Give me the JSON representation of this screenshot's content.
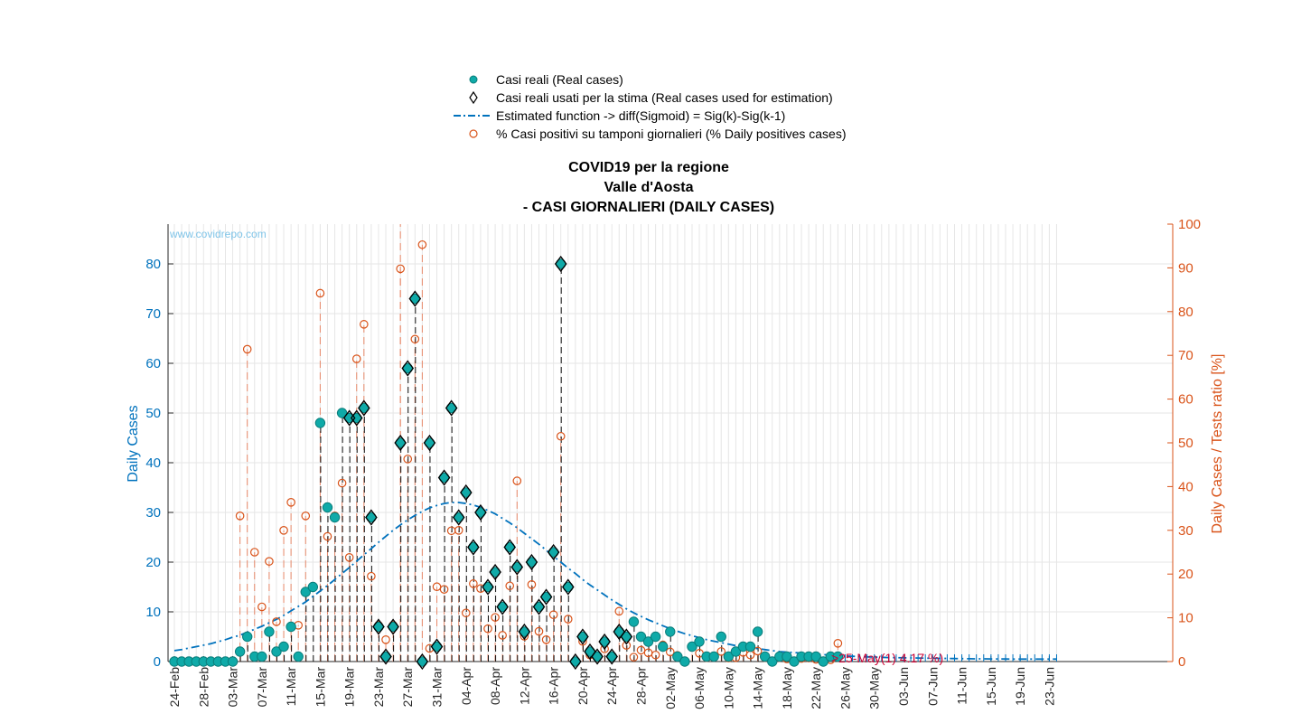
{
  "legend": [
    {
      "label": "Casi reali (Real cases)",
      "icon": "filled-circle-marker"
    },
    {
      "label": "Casi reali usati per la stima (Real cases used for estimation)",
      "icon": "diamond-marker"
    },
    {
      "label": "Estimated function -> diff(Sigmoid) = Sig(k)-Sig(k-1)",
      "icon": "dash-dot-line"
    },
    {
      "label": "% Casi positivi su tamponi giornalieri (% Daily positives cases)",
      "icon": "open-circle-marker"
    }
  ],
  "title": {
    "line1": "COVID19 per la regione",
    "line2": "Valle d'Aosta",
    "line3": "- CASI GIORNALIERI (DAILY CASES)"
  },
  "watermark": "www.covidrepo.com",
  "annotation": ">25-May(1) 4.17 %)",
  "colors": {
    "real_cases": "#0faaa8",
    "estimate_line": "#0072bd",
    "percent": "#d95319",
    "left_axis": "#0072bd",
    "right_axis": "#d95319",
    "annotation": "#cc0033"
  },
  "chart_data": {
    "type": "scatter",
    "title": "COVID19 per la regione Valle d'Aosta - CASI GIORNALIERI (DAILY CASES)",
    "xlabel": "",
    "ylabel": "Daily Cases",
    "y2label": "Daily Cases / Tests ratio [%]",
    "ylim": [
      0,
      88
    ],
    "y2lim": [
      0,
      100
    ],
    "yticks": [
      0,
      10,
      20,
      30,
      40,
      50,
      60,
      70,
      80
    ],
    "y2ticks": [
      0,
      10,
      20,
      30,
      40,
      50,
      60,
      70,
      80,
      90,
      100
    ],
    "x_start": "24-Feb",
    "x_days": 122,
    "xtick_labels": [
      "24-Feb",
      "28-Feb",
      "03-Mar",
      "07-Mar",
      "11-Mar",
      "15-Mar",
      "19-Mar",
      "23-Mar",
      "27-Mar",
      "31-Mar",
      "04-Apr",
      "08-Apr",
      "12-Apr",
      "16-Apr",
      "20-Apr",
      "24-Apr",
      "28-Apr",
      "02-May",
      "06-May",
      "10-May",
      "14-May",
      "18-May",
      "22-May",
      "26-May",
      "30-May",
      "03-Jun",
      "07-Jun",
      "11-Jun",
      "15-Jun",
      "19-Jun",
      "23-Jun"
    ],
    "grid": true,
    "legend_position": "top",
    "series": [
      {
        "name": "Casi reali (Real cases)",
        "x": [
          "24-Feb",
          "25-Feb",
          "26-Feb",
          "27-Feb",
          "28-Feb",
          "29-Feb",
          "01-Mar",
          "02-Mar",
          "03-Mar",
          "04-Mar",
          "05-Mar",
          "06-Mar",
          "07-Mar",
          "08-Mar",
          "09-Mar",
          "10-Mar",
          "11-Mar",
          "12-Mar",
          "13-Mar",
          "14-Mar",
          "15-Mar",
          "16-Mar",
          "17-Mar",
          "18-Mar",
          "19-Mar",
          "20-Mar",
          "21-Mar",
          "22-Mar",
          "23-Mar",
          "24-Mar",
          "25-Mar",
          "26-Mar",
          "27-Mar",
          "28-Mar",
          "29-Mar",
          "30-Mar",
          "31-Mar",
          "01-Apr",
          "02-Apr",
          "03-Apr",
          "04-Apr",
          "05-Apr",
          "06-Apr",
          "07-Apr",
          "08-Apr",
          "09-Apr",
          "10-Apr",
          "11-Apr",
          "12-Apr",
          "13-Apr",
          "14-Apr",
          "15-Apr",
          "16-Apr",
          "17-Apr",
          "18-Apr",
          "19-Apr",
          "20-Apr",
          "21-Apr",
          "22-Apr",
          "23-Apr",
          "24-Apr",
          "25-Apr",
          "26-Apr",
          "27-Apr",
          "28-Apr",
          "29-Apr",
          "30-Apr",
          "01-May",
          "02-May",
          "03-May",
          "04-May",
          "05-May",
          "06-May",
          "07-May",
          "08-May",
          "09-May",
          "10-May",
          "11-May",
          "12-May",
          "13-May",
          "14-May",
          "15-May",
          "16-May",
          "17-May",
          "18-May",
          "19-May",
          "20-May",
          "21-May",
          "22-May",
          "23-May",
          "24-May",
          "25-May"
        ],
        "values": [
          0,
          0,
          0,
          0,
          0,
          0,
          0,
          0,
          0,
          2,
          5,
          1,
          1,
          6,
          2,
          3,
          7,
          1,
          14,
          15,
          48,
          31,
          29,
          50,
          49,
          49,
          51,
          29,
          7,
          1,
          7,
          44,
          59,
          73,
          0,
          44,
          3,
          37,
          51,
          29,
          34,
          23,
          30,
          15,
          18,
          11,
          23,
          19,
          6,
          20,
          11,
          13,
          22,
          80,
          15,
          0,
          5,
          2,
          1,
          4,
          1,
          6,
          5,
          8,
          5,
          4,
          5,
          3,
          6,
          1,
          0,
          3,
          4,
          1,
          1,
          5,
          1,
          2,
          3,
          3,
          6,
          1,
          0,
          1,
          1,
          0,
          1,
          1,
          1,
          0,
          1,
          1
        ]
      },
      {
        "name": "Casi reali usati per la stima (Real cases used for estimation)",
        "x": [
          "19-Mar",
          "20-Mar",
          "21-Mar",
          "22-Mar",
          "23-Mar",
          "24-Mar",
          "25-Mar",
          "26-Mar",
          "27-Mar",
          "28-Mar",
          "29-Mar",
          "30-Mar",
          "31-Mar",
          "01-Apr",
          "02-Apr",
          "03-Apr",
          "04-Apr",
          "05-Apr",
          "06-Apr",
          "07-Apr",
          "08-Apr",
          "09-Apr",
          "10-Apr",
          "11-Apr",
          "12-Apr",
          "13-Apr",
          "14-Apr",
          "15-Apr",
          "16-Apr",
          "17-Apr",
          "18-Apr",
          "19-Apr",
          "20-Apr",
          "21-Apr",
          "22-Apr",
          "23-Apr",
          "24-Apr",
          "25-Apr",
          "26-Apr"
        ],
        "values": [
          49,
          49,
          51,
          29,
          7,
          1,
          7,
          44,
          59,
          73,
          0,
          44,
          3,
          37,
          51,
          29,
          34,
          23,
          30,
          15,
          18,
          11,
          23,
          19,
          6,
          20,
          11,
          13,
          22,
          80,
          15,
          0,
          5,
          2,
          1,
          4,
          1,
          6,
          5
        ]
      },
      {
        "name": "Estimated function -> diff(Sigmoid) = Sig(k)-Sig(k-1)",
        "x_start": "24-Feb",
        "values": [
          2.2,
          2.4,
          2.7,
          3.0,
          3.3,
          3.6,
          4.0,
          4.4,
          4.9,
          5.3,
          5.9,
          6.5,
          7.1,
          7.8,
          8.5,
          9.3,
          10.2,
          11.1,
          12.0,
          13.1,
          14.2,
          15.3,
          16.5,
          17.7,
          18.9,
          20.2,
          21.5,
          22.7,
          24.0,
          25.2,
          26.4,
          27.5,
          28.5,
          29.4,
          30.2,
          30.9,
          31.4,
          31.8,
          32.0,
          32.0,
          31.8,
          31.5,
          31.0,
          30.4,
          29.7,
          28.8,
          27.9,
          26.9,
          25.8,
          24.7,
          23.6,
          22.4,
          21.2,
          20.0,
          18.8,
          17.7,
          16.5,
          15.4,
          14.4,
          13.4,
          12.4,
          11.5,
          10.6,
          9.8,
          9.1,
          8.4,
          7.8,
          7.2,
          6.6,
          6.1,
          5.6,
          5.2,
          4.8,
          4.4,
          4.1,
          3.8,
          3.5,
          3.2,
          3.0,
          2.8,
          2.6,
          2.4,
          2.2,
          2.0,
          1.9,
          1.8,
          1.7,
          1.6,
          1.5,
          1.4,
          1.3,
          1.2,
          1.1,
          1.05,
          1.0,
          0.95,
          0.9,
          0.85,
          0.8,
          0.78,
          0.75,
          0.72,
          0.7,
          0.68,
          0.66,
          0.64,
          0.62,
          0.6,
          0.58,
          0.56,
          0.55,
          0.54,
          0.53,
          0.52,
          0.51,
          0.5,
          0.5,
          0.5,
          0.5,
          0.5,
          0.5,
          0.5
        ]
      },
      {
        "name": "% Casi positivi su tamponi giornalieri (% Daily positives cases)",
        "axis": "right",
        "x": [
          "04-Mar",
          "05-Mar",
          "06-Mar",
          "07-Mar",
          "08-Mar",
          "09-Mar",
          "10-Mar",
          "11-Mar",
          "12-Mar",
          "13-Mar",
          "15-Mar",
          "16-Mar",
          "17-Mar",
          "18-Mar",
          "19-Mar",
          "20-Mar",
          "21-Mar",
          "22-Mar",
          "23-Mar",
          "24-Mar",
          "25-Mar",
          "26-Mar",
          "27-Mar",
          "28-Mar",
          "29-Mar",
          "30-Mar",
          "31-Mar",
          "01-Apr",
          "02-Apr",
          "03-Apr",
          "04-Apr",
          "05-Apr",
          "06-Apr",
          "07-Apr",
          "08-Apr",
          "09-Apr",
          "10-Apr",
          "11-Apr",
          "12-Apr",
          "13-Apr",
          "14-Apr",
          "15-Apr",
          "16-Apr",
          "17-Apr",
          "18-Apr",
          "19-Apr",
          "20-Apr",
          "21-Apr",
          "22-Apr",
          "23-Apr",
          "24-Apr",
          "25-Apr",
          "26-Apr",
          "27-Apr",
          "28-Apr",
          "29-Apr",
          "30-Apr",
          "01-May",
          "02-May",
          "03-May",
          "04-May",
          "05-May",
          "06-May",
          "07-May",
          "08-May",
          "09-May",
          "10-May",
          "11-May",
          "12-May",
          "13-May",
          "14-May",
          "15-May",
          "16-May",
          "17-May",
          "18-May",
          "19-May",
          "20-May",
          "21-May",
          "22-May",
          "23-May",
          "24-May",
          "25-May"
        ],
        "values": [
          33.3,
          71.4,
          25.0,
          12.5,
          22.9,
          9.1,
          30.0,
          36.4,
          8.3,
          33.3,
          84.2,
          28.6,
          33.3,
          40.8,
          23.8,
          69.2,
          77.1,
          19.5,
          8.3,
          5.0,
          8.3,
          89.8,
          46.3,
          73.7,
          95.3,
          3.0,
          17.1,
          16.5,
          29.9,
          30.0,
          11.1,
          17.8,
          16.7,
          7.5,
          10.1,
          6.0,
          17.3,
          41.3,
          5.8,
          17.6,
          6.9,
          5.0,
          10.7,
          51.5,
          9.7,
          0,
          4.6,
          1.5,
          0.9,
          2.9,
          1.0,
          11.5,
          3.7,
          1.0,
          2.6,
          2.0,
          1.5,
          3.8,
          2.2,
          1.4,
          0,
          3.5,
          1.9,
          0.9,
          1.0,
          2.3,
          0.8,
          0.9,
          2.1,
          1.5,
          2.4,
          0.9,
          0,
          0.9,
          0.6,
          0,
          0.7,
          0.8,
          0.5,
          0,
          0.4,
          4.17
        ]
      }
    ]
  }
}
